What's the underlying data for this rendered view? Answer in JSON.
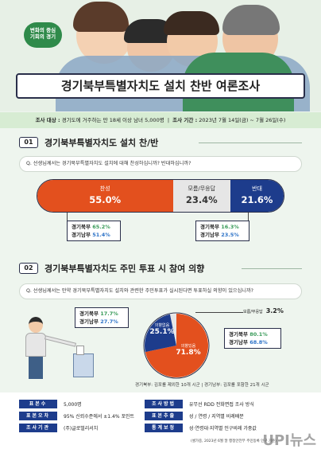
{
  "hero": {
    "badge_line1": "변화의 중심",
    "badge_line2": "기회의 경기",
    "title": "경기북부특별자치도 설치 찬반 여론조사"
  },
  "survey_info": {
    "target_label": "조사 대상 :",
    "target_value": "경기도에 거주하는 만 18세 이상 남녀 5,000명",
    "period_label": "조사 기간 :",
    "period_value": "2023년 7월 14일(금) ~ 7월 26일(수)"
  },
  "section1": {
    "num": "01",
    "title": "경기북부특별자치도 설치 찬/반",
    "question": "Q. 선생님께서는 경기북부특별자치도 설치에 대해 찬성하십니까? 반대하십니까?",
    "agree_label": "찬성",
    "agree_value": "55.0%",
    "dk_label": "모름/무응답",
    "dk_value": "23.4%",
    "oppose_label": "반대",
    "oppose_value": "21.6%",
    "agree_north_label": "경기북부",
    "agree_north_value": "65.2%",
    "agree_south_label": "경기남부",
    "agree_south_value": "51.4%",
    "oppose_north_label": "경기북부",
    "oppose_north_value": "16.3%",
    "oppose_south_label": "경기남부",
    "oppose_south_value": "23.5%"
  },
  "section2": {
    "num": "02",
    "title": "경기북부특별자치도 주민 투표 시 참여 의향",
    "question": "Q. 선생님께서는 만약 경기북부특별자치도 설치와 관련한 주민투표가 실시된다면 투표하실 의향이 있으십니까?",
    "no_intent_label": "의향없음",
    "no_intent_value": "25.1%",
    "intent_label": "의향있음",
    "intent_value": "71.8%",
    "dk_label": "모름/무응답",
    "dk_value": "3.2%",
    "no_north_label": "경기북부",
    "no_north_value": "17.7%",
    "no_south_label": "경기남부",
    "no_south_value": "27.7%",
    "yes_north_label": "경기북부",
    "yes_north_value": "80.1%",
    "yes_south_label": "경기남부",
    "yes_south_value": "68.8%",
    "note": "경기북부: 김포를 제외한 10개 시군  |  경기남부: 김포를 포함한 21개 시군"
  },
  "colors": {
    "agree": "#e3501e",
    "oppose": "#1d3c8c",
    "dk": "#e6e6e6",
    "green": "#3a9b5a",
    "blue": "#2f74c8"
  },
  "pie": {
    "values": [
      71.8,
      25.1,
      3.2
    ]
  },
  "footer": {
    "rows": [
      {
        "tag": "표본수",
        "value": "5,000명"
      },
      {
        "tag": "표본오차",
        "value": "95% 신뢰수준에서 ±1.4% 포인트"
      },
      {
        "tag": "조사기관",
        "value": "(주)글로벌리서치"
      },
      {
        "tag": "조사방법",
        "value": "유무선 RDD 전화면접 조사 방식"
      },
      {
        "tag": "표본추출",
        "value": "성 / 연령 / 지역별 비례배분"
      },
      {
        "tag": "통계보정",
        "value": "성·연령대·지역별 인구비례 가중값"
      }
    ],
    "sub_note": "(셀가중, 2023년 6월 말 행정안전부 주민등록 인구 기준)"
  },
  "watermark": "UPI뉴스"
}
